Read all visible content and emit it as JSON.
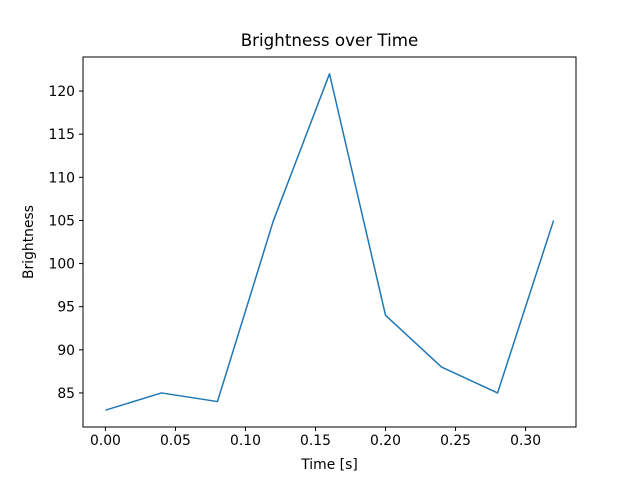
{
  "figure": {
    "background": "#ffffff"
  },
  "chart_data": {
    "type": "line",
    "title": "Brightness over Time",
    "xlabel": "Time [s]",
    "ylabel": "Brightness",
    "x": [
      0.0,
      0.04,
      0.08,
      0.12,
      0.16,
      0.2,
      0.24,
      0.28,
      0.32
    ],
    "y": [
      83,
      85,
      84,
      105,
      122,
      94,
      88,
      85,
      105
    ],
    "line_color": "#1f77b4",
    "axis_color": "#000000",
    "xlim": [
      -0.016,
      0.336
    ],
    "ylim": [
      81.05,
      123.95
    ],
    "xticks": [
      0.0,
      0.05,
      0.1,
      0.15,
      0.2,
      0.25,
      0.3
    ],
    "xtick_labels": [
      "0.00",
      "0.05",
      "0.10",
      "0.15",
      "0.20",
      "0.25",
      "0.30"
    ],
    "yticks": [
      85,
      90,
      95,
      100,
      105,
      110,
      115,
      120
    ],
    "ytick_labels": [
      "85",
      "90",
      "95",
      "100",
      "105",
      "110",
      "115",
      "120"
    ],
    "grid": false,
    "legend": null
  }
}
